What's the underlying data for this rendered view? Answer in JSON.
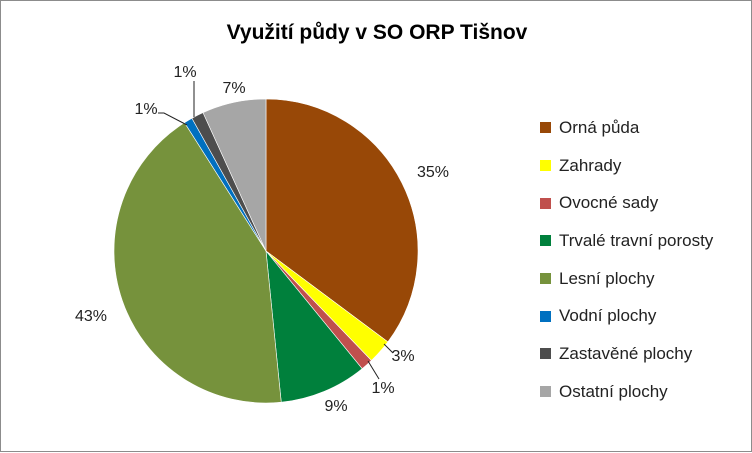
{
  "chart_data": {
    "type": "pie",
    "title": "Využití půdy v SO ORP Tišnov",
    "categories": [
      "Orná půda",
      "Zahrady",
      "Ovocné sady",
      "Trvalé travní porosty",
      "Lesní plochy",
      "Vodní plochy",
      "Zastavěné plochy",
      "Ostatní plochy"
    ],
    "values": [
      35.2,
      2.6,
      1.3,
      9.3,
      42.6,
      0.9,
      1.3,
      6.8
    ],
    "value_labels": [
      "35%",
      "3%",
      "1%",
      "9%",
      "43%",
      "1%",
      "1%",
      "7%"
    ],
    "colors": [
      "#984807",
      "#FFFF00",
      "#C0504D",
      "#00803C",
      "#76923C",
      "#0070C0",
      "#4D4D4D",
      "#A6A6A6"
    ],
    "legend_position": "right",
    "start_angle": "top, clockwise"
  }
}
